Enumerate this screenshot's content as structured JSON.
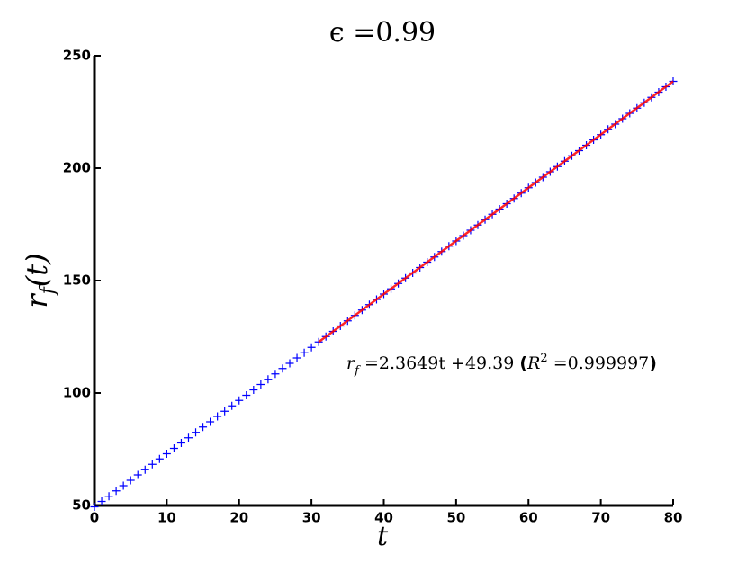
{
  "chart_data": {
    "type": "scatter",
    "title": "ϵ =0.99",
    "xlabel": "t",
    "ylabel": [
      "r",
      "f",
      "(t)"
    ],
    "annotation": [
      "r",
      "f",
      " =2.3649t +49.39 ",
      "(",
      "R",
      "2",
      " =0.999997",
      ")"
    ],
    "x": [
      0,
      1,
      2,
      3,
      4,
      5,
      6,
      7,
      8,
      9,
      10,
      11,
      12,
      13,
      14,
      15,
      16,
      17,
      18,
      19,
      20,
      21,
      22,
      23,
      24,
      25,
      26,
      27,
      28,
      29,
      30,
      31,
      32,
      33,
      34,
      35,
      36,
      37,
      38,
      39,
      40,
      41,
      42,
      43,
      44,
      45,
      46,
      47,
      48,
      49,
      50,
      51,
      52,
      53,
      54,
      55,
      56,
      57,
      58,
      59,
      60,
      61,
      62,
      63,
      64,
      65,
      66,
      67,
      68,
      69,
      70,
      71,
      72,
      73,
      74,
      75,
      76,
      77,
      78,
      79,
      80
    ],
    "values": [
      49.4,
      51.8,
      54.1,
      56.5,
      58.8,
      61.2,
      63.6,
      65.9,
      68.3,
      70.7,
      73.0,
      75.4,
      77.8,
      80.1,
      82.5,
      84.9,
      87.2,
      89.6,
      91.9,
      94.3,
      96.7,
      99.0,
      101.4,
      103.8,
      106.1,
      108.5,
      110.9,
      113.2,
      115.6,
      117.9,
      120.3,
      122.7,
      125.1,
      127.4,
      129.8,
      132.1,
      134.5,
      136.9,
      139.3,
      141.6,
      144.0,
      146.3,
      148.7,
      151.1,
      153.4,
      155.8,
      158.2,
      160.5,
      162.9,
      165.3,
      167.6,
      170.0,
      172.4,
      174.7,
      177.1,
      179.5,
      181.8,
      184.2,
      186.5,
      188.9,
      191.3,
      193.6,
      196.0,
      198.4,
      200.7,
      203.1,
      205.5,
      207.8,
      210.2,
      212.6,
      214.9,
      217.3,
      219.6,
      222.0,
      224.4,
      226.7,
      229.1,
      231.5,
      233.8,
      236.2,
      238.6
    ],
    "color": "#0000ff",
    "fit_line": {
      "x": [
        31,
        80
      ],
      "values": [
        122.7,
        238.6
      ],
      "color": "#ff0000"
    },
    "xlim": [
      0,
      80
    ],
    "xticks": [
      0,
      10,
      20,
      30,
      40,
      50,
      60,
      70,
      80
    ],
    "ylim": [
      50,
      250
    ],
    "yticks": [
      50,
      100,
      150,
      200,
      250
    ]
  }
}
